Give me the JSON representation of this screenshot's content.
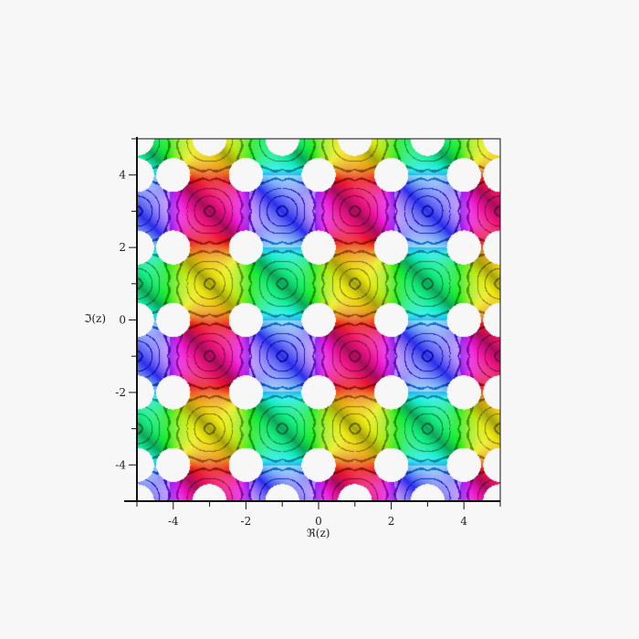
{
  "chart_data": {
    "type": "heatmap",
    "subtype": "complex domain coloring with contour lines",
    "xlabel": "ℜ(z)",
    "ylabel": "ℑ(z)",
    "xlim": [
      -5,
      5
    ],
    "ylim": [
      -5,
      5
    ],
    "xticks": [
      -4,
      -2,
      0,
      2,
      4
    ],
    "yticks": [
      -4,
      -2,
      0,
      2,
      4
    ],
    "xtick_labels": [
      "-4",
      "-2",
      "0",
      "2",
      "4"
    ],
    "ytick_labels": [
      "-4",
      "-2",
      "0",
      "2",
      "4"
    ],
    "minor_tick_step": 1,
    "holes_at": "points with even real and imaginary parts (unbounded regions left blank)",
    "colors": [
      "#00e0e0",
      "#f0e040",
      "#c04030",
      "#f0a0b0",
      "#ffffff",
      "#404010"
    ],
    "grid": false,
    "legend": "none"
  }
}
